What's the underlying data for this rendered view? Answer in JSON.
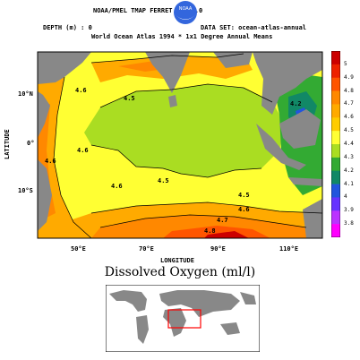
{
  "header": {
    "title": "NOAA/PMEL TMAP    FERRET Ver 4.0",
    "depth": "DEPTH (m) : 0",
    "dataset": "DATA SET: ocean-atlas-annual",
    "subtitle": "World Ocean Atlas 1994 * 1x1 Degree Annual Means",
    "logo_text": "NOAA"
  },
  "axes": {
    "y_title": "LATITUDE",
    "x_title": "LONGITUDE",
    "y_ticks": [
      "10°N",
      "0°",
      "10°S"
    ],
    "x_ticks": [
      "50°E",
      "70°E",
      "90°E",
      "110°E"
    ]
  },
  "contour_labels": [
    "4.6",
    "4.5",
    "4.6",
    "4.5",
    "4.5",
    "4.6",
    "4.7",
    "4.8",
    "4.6",
    "4.6",
    "4.2"
  ],
  "colorbar": {
    "levels": [
      "5",
      "4.9",
      "4.8",
      "4.7",
      "4.6",
      "4.5",
      "4.4",
      "4.3",
      "4.2",
      "4.1",
      "4",
      "3.9",
      "3.8"
    ],
    "colors": [
      "#cc0000",
      "#ee2200",
      "#ff5500",
      "#ff8800",
      "#ffaa00",
      "#ffcc00",
      "#ffff33",
      "#aadd22",
      "#33aa33",
      "#118866",
      "#2255dd",
      "#6633ff",
      "#bb33ff",
      "#ff00ff"
    ]
  },
  "bottom_title": "Dissolved Oxygen (ml/l)",
  "map_colors": {
    "land": "#888888",
    "inset_ocean": "#ffffff",
    "inset_border": "#000000",
    "highlight_box": "#ff0000"
  }
}
